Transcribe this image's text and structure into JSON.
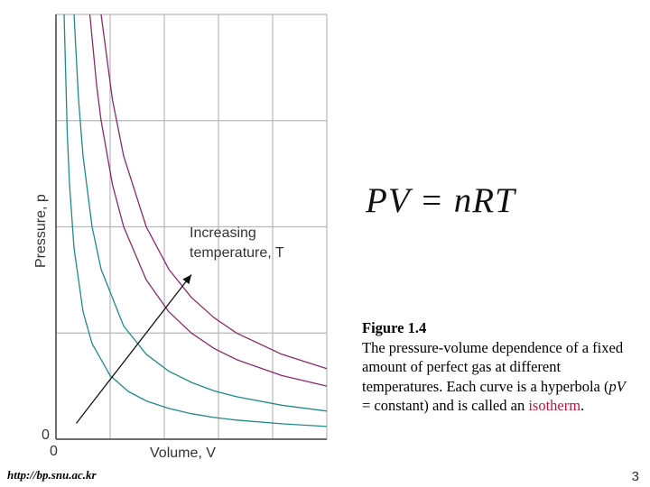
{
  "chart_data": {
    "type": "line",
    "title": "",
    "xlabel": "Volume, V",
    "ylabel": "Pressure, p",
    "x_origin_label": "0",
    "y_origin_label": "0",
    "xlim": [
      0,
      6
    ],
    "ylim": [
      0,
      8
    ],
    "grid": true,
    "annotation": "Increasing temperature, T",
    "series": [
      {
        "color": "#1f8a8a",
        "x": [
          0.18,
          0.25,
          0.3,
          0.4,
          0.6,
          0.8,
          1.2,
          1.6,
          2.0,
          2.5,
          3.0,
          3.5,
          4.0,
          5.0,
          6.0
        ],
        "y": [
          8.0,
          5.76,
          4.8,
          3.6,
          2.4,
          1.8,
          1.2,
          0.9,
          0.72,
          0.58,
          0.48,
          0.41,
          0.36,
          0.29,
          0.24
        ]
      },
      {
        "color": "#1f8a8a",
        "x": [
          0.4,
          0.5,
          0.6,
          0.8,
          1.0,
          1.5,
          2.0,
          2.5,
          3.0,
          3.5,
          4.0,
          5.0,
          6.0
        ],
        "y": [
          8.0,
          6.4,
          5.33,
          4.0,
          3.2,
          2.13,
          1.6,
          1.28,
          1.07,
          0.91,
          0.8,
          0.64,
          0.53
        ]
      },
      {
        "color": "#8a2a6a",
        "x": [
          0.75,
          0.9,
          1.0,
          1.25,
          1.5,
          2.0,
          2.5,
          3.0,
          3.5,
          4.0,
          5.0,
          6.0
        ],
        "y": [
          8.0,
          6.67,
          6.0,
          4.8,
          4.0,
          3.0,
          2.4,
          2.0,
          1.71,
          1.5,
          1.2,
          1.0
        ]
      },
      {
        "color": "#8a2a6a",
        "x": [
          1.0,
          1.25,
          1.5,
          2.0,
          2.5,
          3.0,
          3.5,
          4.0,
          5.0,
          6.0
        ],
        "y": [
          8.0,
          6.4,
          5.33,
          4.0,
          3.2,
          2.67,
          2.29,
          2.0,
          1.6,
          1.33
        ]
      }
    ],
    "arrow": {
      "from": [
        0.45,
        0.3
      ],
      "to": [
        3.0,
        3.1
      ]
    }
  },
  "formula": "PV = nRT",
  "caption": {
    "title": "Figure 1.4",
    "line1": "The pressure-volume dependence of a fixed amount of perfect gas at different temperatures.  Each curve is a hyperbola (",
    "pV": "pV",
    "line2": " = constant) and is called an ",
    "isotherm": "isotherm",
    "end": "."
  },
  "footer": {
    "url": "http://bp.snu.ac.kr",
    "page": "3"
  }
}
